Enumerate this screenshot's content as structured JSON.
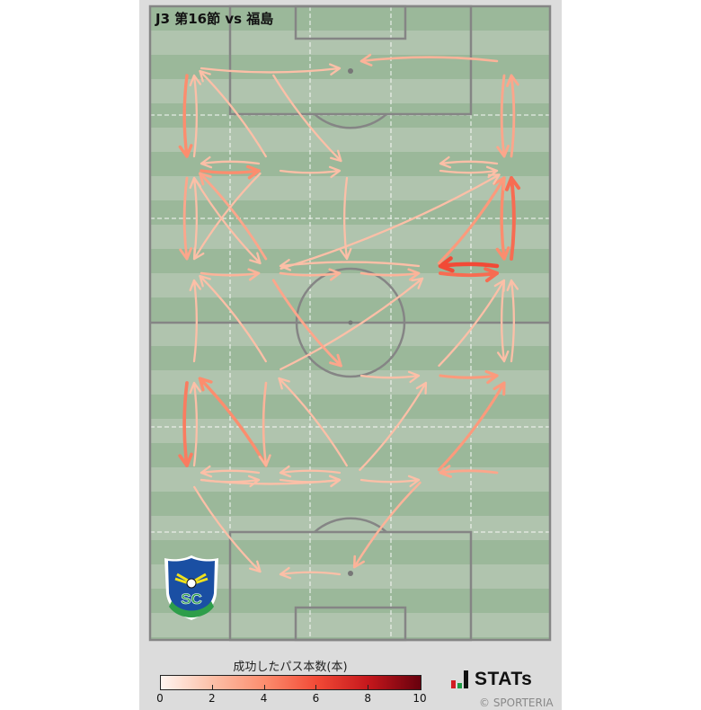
{
  "title": "J3 第16節 vs 福島",
  "logo": {
    "text": "TOCHIGI SOCCER CLUB",
    "initials": "SC"
  },
  "legend": {
    "title": "成功したパス本数(本)",
    "ticks": [
      "0",
      "2",
      "4",
      "6",
      "8",
      "10"
    ],
    "colormap": [
      "#fff5f0",
      "#fcbfa7",
      "#fc8d6e",
      "#f24a36",
      "#c5171c",
      "#67000d"
    ]
  },
  "brand": {
    "name": "STATs",
    "copyright": "© SPORTERIA"
  },
  "chart_data": {
    "type": "pass-network",
    "title": "J3 第16節 vs 福島",
    "value_label": "成功したパス本数(本)",
    "value_range": [
      0,
      10
    ],
    "zones": {
      "columns": 5,
      "rows": 6
    },
    "edges": [
      {
        "from": [
          0,
          0
        ],
        "to": [
          2,
          0
        ],
        "n": 2
      },
      {
        "from": [
          4,
          0
        ],
        "to": [
          2,
          0
        ],
        "n": 2.5
      },
      {
        "from": [
          1,
          0
        ],
        "to": [
          2,
          1
        ],
        "n": 2
      },
      {
        "from": [
          1,
          1
        ],
        "to": [
          0,
          0
        ],
        "n": 2
      },
      {
        "from": [
          0,
          0
        ],
        "to": [
          0,
          1
        ],
        "n": 4
      },
      {
        "from": [
          0,
          1
        ],
        "to": [
          0,
          0
        ],
        "n": 2
      },
      {
        "from": [
          1,
          1
        ],
        "to": [
          0,
          1
        ],
        "n": 2
      },
      {
        "from": [
          0,
          1
        ],
        "to": [
          1,
          1
        ],
        "n": 4
      },
      {
        "from": [
          1,
          1
        ],
        "to": [
          2,
          1
        ],
        "n": 2
      },
      {
        "from": [
          2,
          1
        ],
        "to": [
          2,
          2
        ],
        "n": 2
      },
      {
        "from": [
          4,
          1
        ],
        "to": [
          3,
          1
        ],
        "n": 2
      },
      {
        "from": [
          3,
          1
        ],
        "to": [
          4,
          1
        ],
        "n": 2
      },
      {
        "from": [
          4,
          0
        ],
        "to": [
          4,
          1
        ],
        "n": 3
      },
      {
        "from": [
          4,
          1
        ],
        "to": [
          4,
          0
        ],
        "n": 3
      },
      {
        "from": [
          0,
          1
        ],
        "to": [
          0,
          2
        ],
        "n": 3
      },
      {
        "from": [
          0,
          2
        ],
        "to": [
          0,
          1
        ],
        "n": 2
      },
      {
        "from": [
          0,
          1
        ],
        "to": [
          1,
          2
        ],
        "n": 2
      },
      {
        "from": [
          1,
          2
        ],
        "to": [
          0,
          1
        ],
        "n": 3
      },
      {
        "from": [
          1,
          1
        ],
        "to": [
          0,
          2
        ],
        "n": 2
      },
      {
        "from": [
          0,
          2
        ],
        "to": [
          1,
          2
        ],
        "n": 2.5
      },
      {
        "from": [
          1,
          2
        ],
        "to": [
          2,
          2
        ],
        "n": 2.5
      },
      {
        "from": [
          2,
          2
        ],
        "to": [
          3,
          2
        ],
        "n": 2.5
      },
      {
        "from": [
          3,
          2
        ],
        "to": [
          1,
          2
        ],
        "n": 2
      },
      {
        "from": [
          4,
          2
        ],
        "to": [
          3,
          2
        ],
        "n": 6
      },
      {
        "from": [
          3,
          2
        ],
        "to": [
          4,
          2
        ],
        "n": 5
      },
      {
        "from": [
          4,
          2
        ],
        "to": [
          4,
          1
        ],
        "n": 5
      },
      {
        "from": [
          4,
          1
        ],
        "to": [
          4,
          2
        ],
        "n": 4
      },
      {
        "from": [
          3,
          2
        ],
        "to": [
          4,
          1
        ],
        "n": 3.5
      },
      {
        "from": [
          1,
          2
        ],
        "to": [
          4,
          1
        ],
        "n": 2
      },
      {
        "from": [
          1,
          3
        ],
        "to": [
          3,
          2
        ],
        "n": 2
      },
      {
        "from": [
          3,
          3
        ],
        "to": [
          4,
          2
        ],
        "n": 2
      },
      {
        "from": [
          4,
          3
        ],
        "to": [
          4,
          2
        ],
        "n": 2
      },
      {
        "from": [
          4,
          2
        ],
        "to": [
          4,
          3
        ],
        "n": 2
      },
      {
        "from": [
          1,
          2
        ],
        "to": [
          2,
          3
        ],
        "n": 3
      },
      {
        "from": [
          1,
          3
        ],
        "to": [
          0,
          2
        ],
        "n": 2
      },
      {
        "from": [
          0,
          3
        ],
        "to": [
          0,
          2
        ],
        "n": 2
      },
      {
        "from": [
          2,
          3
        ],
        "to": [
          3,
          3
        ],
        "n": 2
      },
      {
        "from": [
          3,
          3
        ],
        "to": [
          4,
          3
        ],
        "n": 3.5
      },
      {
        "from": [
          2,
          4
        ],
        "to": [
          3,
          3
        ],
        "n": 2
      },
      {
        "from": [
          3,
          4
        ],
        "to": [
          4,
          3
        ],
        "n": 3.5
      },
      {
        "from": [
          4,
          4
        ],
        "to": [
          3,
          4
        ],
        "n": 3
      },
      {
        "from": [
          0,
          3
        ],
        "to": [
          0,
          4
        ],
        "n": 4.5
      },
      {
        "from": [
          0,
          4
        ],
        "to": [
          0,
          3
        ],
        "n": 2
      },
      {
        "from": [
          1,
          4
        ],
        "to": [
          0,
          3
        ],
        "n": 4
      },
      {
        "from": [
          1,
          3
        ],
        "to": [
          1,
          4
        ],
        "n": 2.5
      },
      {
        "from": [
          2,
          4
        ],
        "to": [
          1,
          3
        ],
        "n": 2
      },
      {
        "from": [
          0,
          4
        ],
        "to": [
          1,
          4
        ],
        "n": 2
      },
      {
        "from": [
          1,
          4
        ],
        "to": [
          0,
          4
        ],
        "n": 2
      },
      {
        "from": [
          0,
          4
        ],
        "to": [
          2,
          4
        ],
        "n": 2
      },
      {
        "from": [
          1,
          4
        ],
        "to": [
          2,
          4
        ],
        "n": 2
      },
      {
        "from": [
          2,
          4
        ],
        "to": [
          1,
          4
        ],
        "n": 2
      },
      {
        "from": [
          2,
          4
        ],
        "to": [
          3,
          4
        ],
        "n": 2
      },
      {
        "from": [
          0,
          4
        ],
        "to": [
          1,
          5
        ],
        "n": 2
      },
      {
        "from": [
          2,
          5
        ],
        "to": [
          1,
          5
        ],
        "n": 2
      },
      {
        "from": [
          3,
          4
        ],
        "to": [
          2,
          5
        ],
        "n": 2.5
      }
    ]
  }
}
